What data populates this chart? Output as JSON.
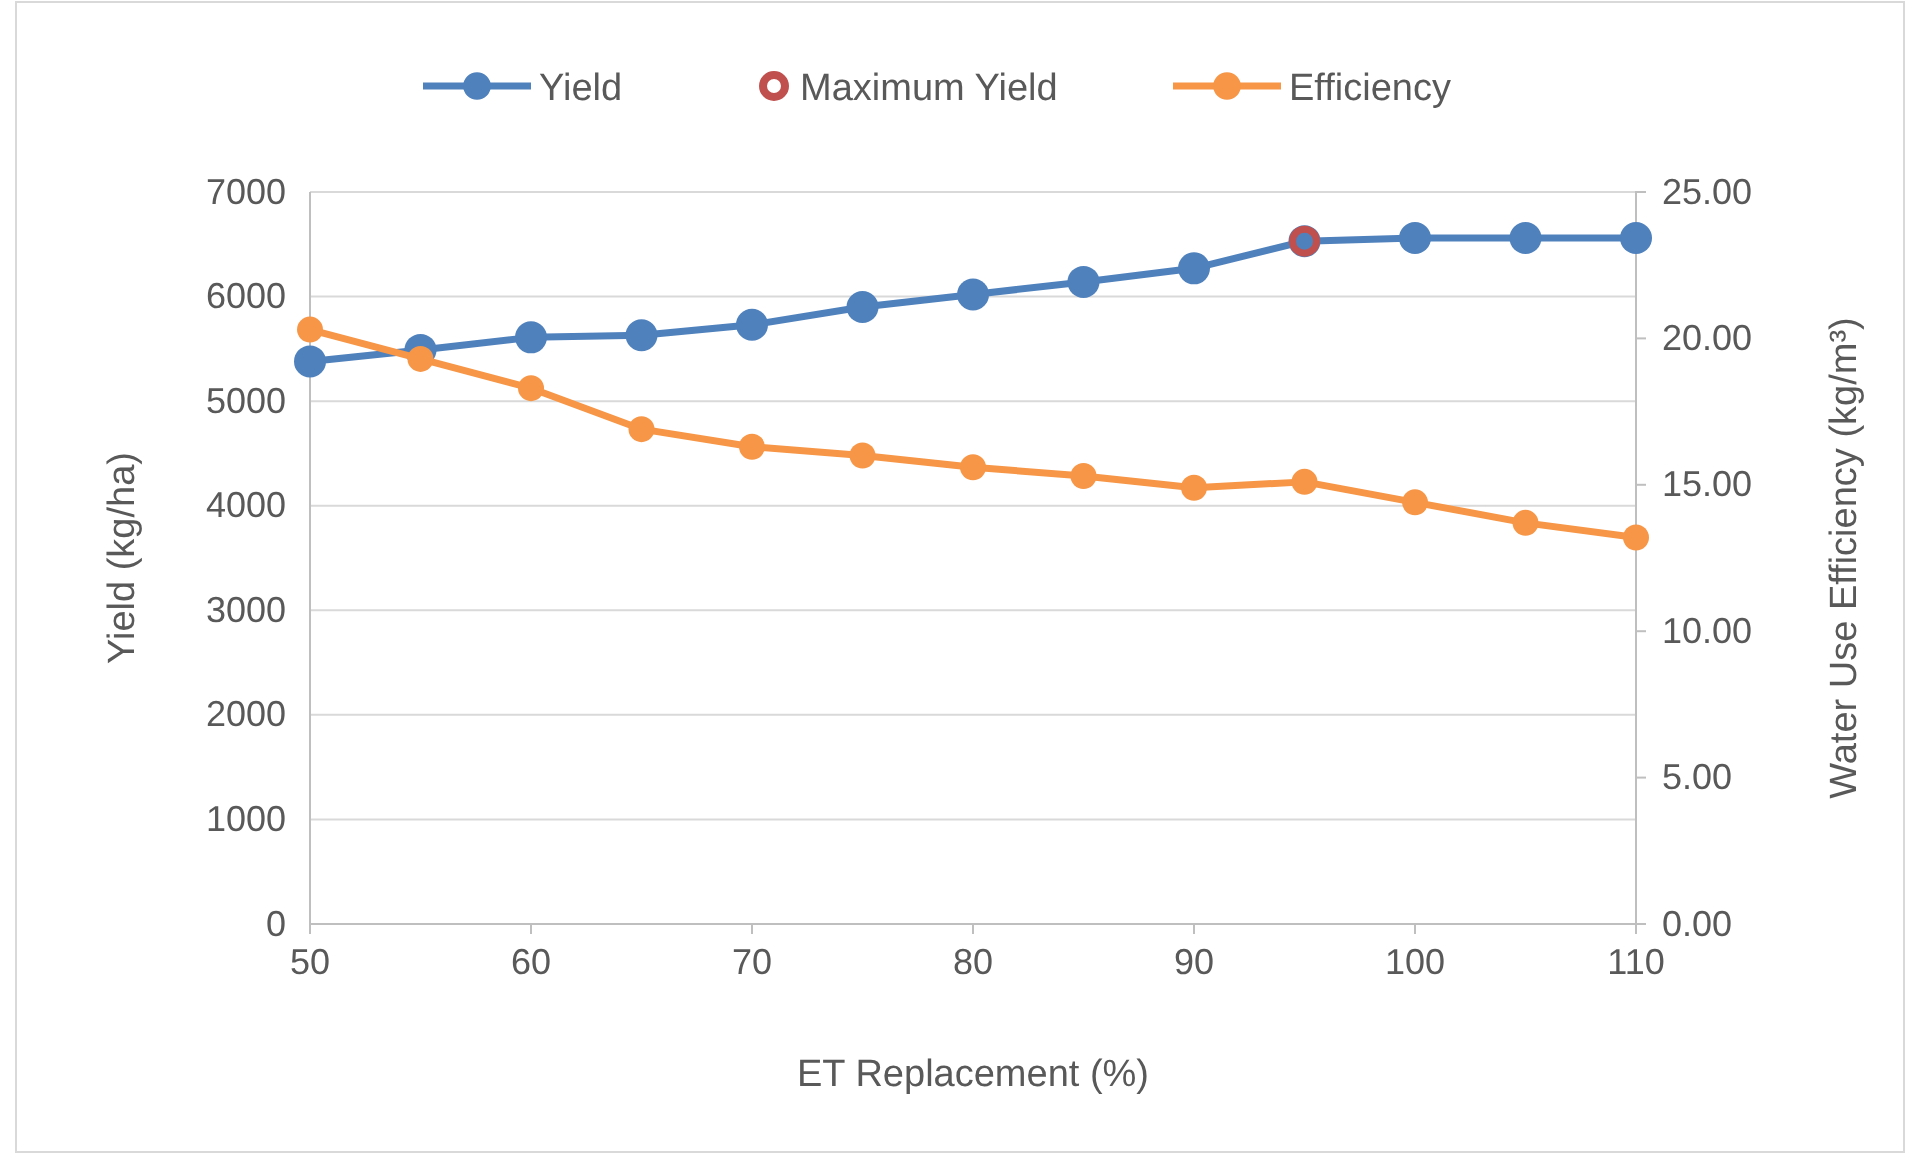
{
  "chart_data": {
    "type": "line",
    "xlabel": "ET Replacement (%)",
    "ylabel": "Yield (kg/ha)",
    "y2label": "Water Use Efficiency (kg/m³)",
    "x": [
      50,
      55,
      60,
      65,
      70,
      75,
      80,
      85,
      90,
      95,
      100,
      105,
      110
    ],
    "xlim": [
      50,
      110
    ],
    "xticks": [
      50,
      60,
      70,
      80,
      90,
      100,
      110
    ],
    "ylim": [
      0,
      7000
    ],
    "yticks": [
      0,
      1000,
      2000,
      3000,
      4000,
      5000,
      6000,
      7000
    ],
    "y2lim": [
      0,
      25
    ],
    "y2ticks": [
      {
        "value": 0,
        "label": "0.00"
      },
      {
        "value": 5,
        "label": "5.00"
      },
      {
        "value": 10,
        "label": "10.00"
      },
      {
        "value": 15,
        "label": "15.00"
      },
      {
        "value": 20,
        "label": "20.00"
      },
      {
        "value": 25,
        "label": "25.00"
      }
    ],
    "grid": "y",
    "legend": "top",
    "marker": "circle",
    "series": [
      {
        "name": "Yield",
        "color": "#4f81bd",
        "values": [
          5380,
          5490,
          5610,
          5630,
          5730,
          5900,
          6020,
          6140,
          6270,
          6530,
          6560,
          6560,
          6560
        ]
      },
      {
        "name": "Maximum Yield",
        "type": "scatter",
        "color": "#c0504d",
        "x": [
          95
        ],
        "values": [
          6530
        ]
      },
      {
        "name": "Efficiency",
        "color": "#f79646",
        "axis": "y2",
        "values": [
          20.3,
          19.3,
          18.3,
          16.9,
          16.3,
          16.0,
          15.6,
          15.3,
          14.9,
          15.1,
          14.4,
          13.7,
          13.2
        ]
      }
    ]
  }
}
